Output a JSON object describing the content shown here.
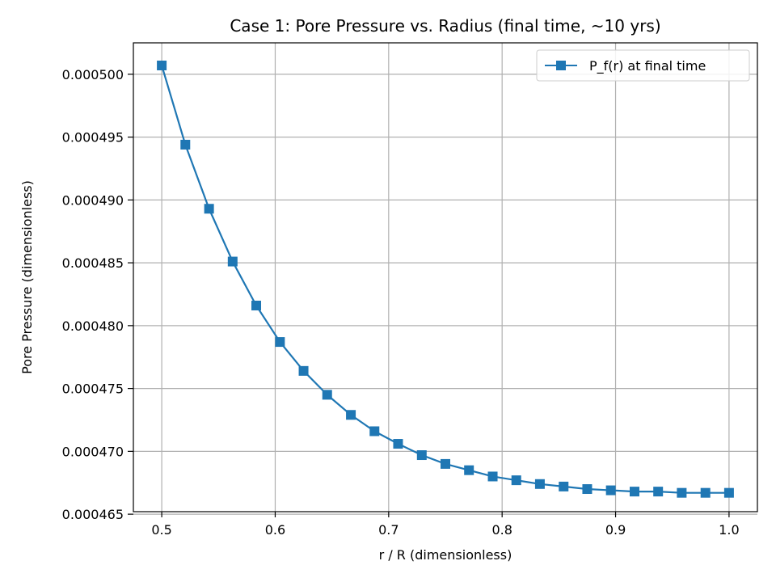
{
  "chart_data": {
    "type": "line",
    "title": "Case 1: Pore Pressure vs. Radius (final time, ~10 yrs)",
    "xlabel": "r / R (dimensionless)",
    "ylabel": "Pore Pressure (dimensionless)",
    "xlim": [
      0.475,
      1.025
    ],
    "ylim": [
      0.0004652,
      0.0005025
    ],
    "xticks": [
      0.5,
      0.6,
      0.7,
      0.8,
      0.9,
      1.0
    ],
    "xtick_labels": [
      "0.5",
      "0.6",
      "0.7",
      "0.8",
      "0.9",
      "1.0"
    ],
    "yticks": [
      0.000465,
      0.00047,
      0.000475,
      0.00048,
      0.000485,
      0.00049,
      0.000495,
      0.0005
    ],
    "ytick_labels": [
      "0.000465",
      "0.000470",
      "0.000475",
      "0.000480",
      "0.000485",
      "0.000490",
      "0.000495",
      "0.000500"
    ],
    "grid": true,
    "legend_position": "top-right",
    "series": [
      {
        "name": "P_f(r) at final time",
        "color": "#1f77b4",
        "marker": "square",
        "x": [
          0.5,
          0.5208,
          0.5417,
          0.5625,
          0.5833,
          0.6042,
          0.625,
          0.6458,
          0.6667,
          0.6875,
          0.7083,
          0.7292,
          0.75,
          0.7708,
          0.7917,
          0.8125,
          0.8333,
          0.8542,
          0.875,
          0.8958,
          0.9167,
          0.9375,
          0.9583,
          0.9792,
          1.0
        ],
        "y": [
          0.0005007,
          0.0004944,
          0.0004893,
          0.0004851,
          0.0004816,
          0.0004787,
          0.0004764,
          0.0004745,
          0.0004729,
          0.0004716,
          0.0004706,
          0.0004697,
          0.000469,
          0.0004685,
          0.000468,
          0.0004677,
          0.0004674,
          0.0004672,
          0.000467,
          0.0004669,
          0.0004668,
          0.0004668,
          0.0004667,
          0.0004667,
          0.0004667
        ]
      }
    ]
  }
}
